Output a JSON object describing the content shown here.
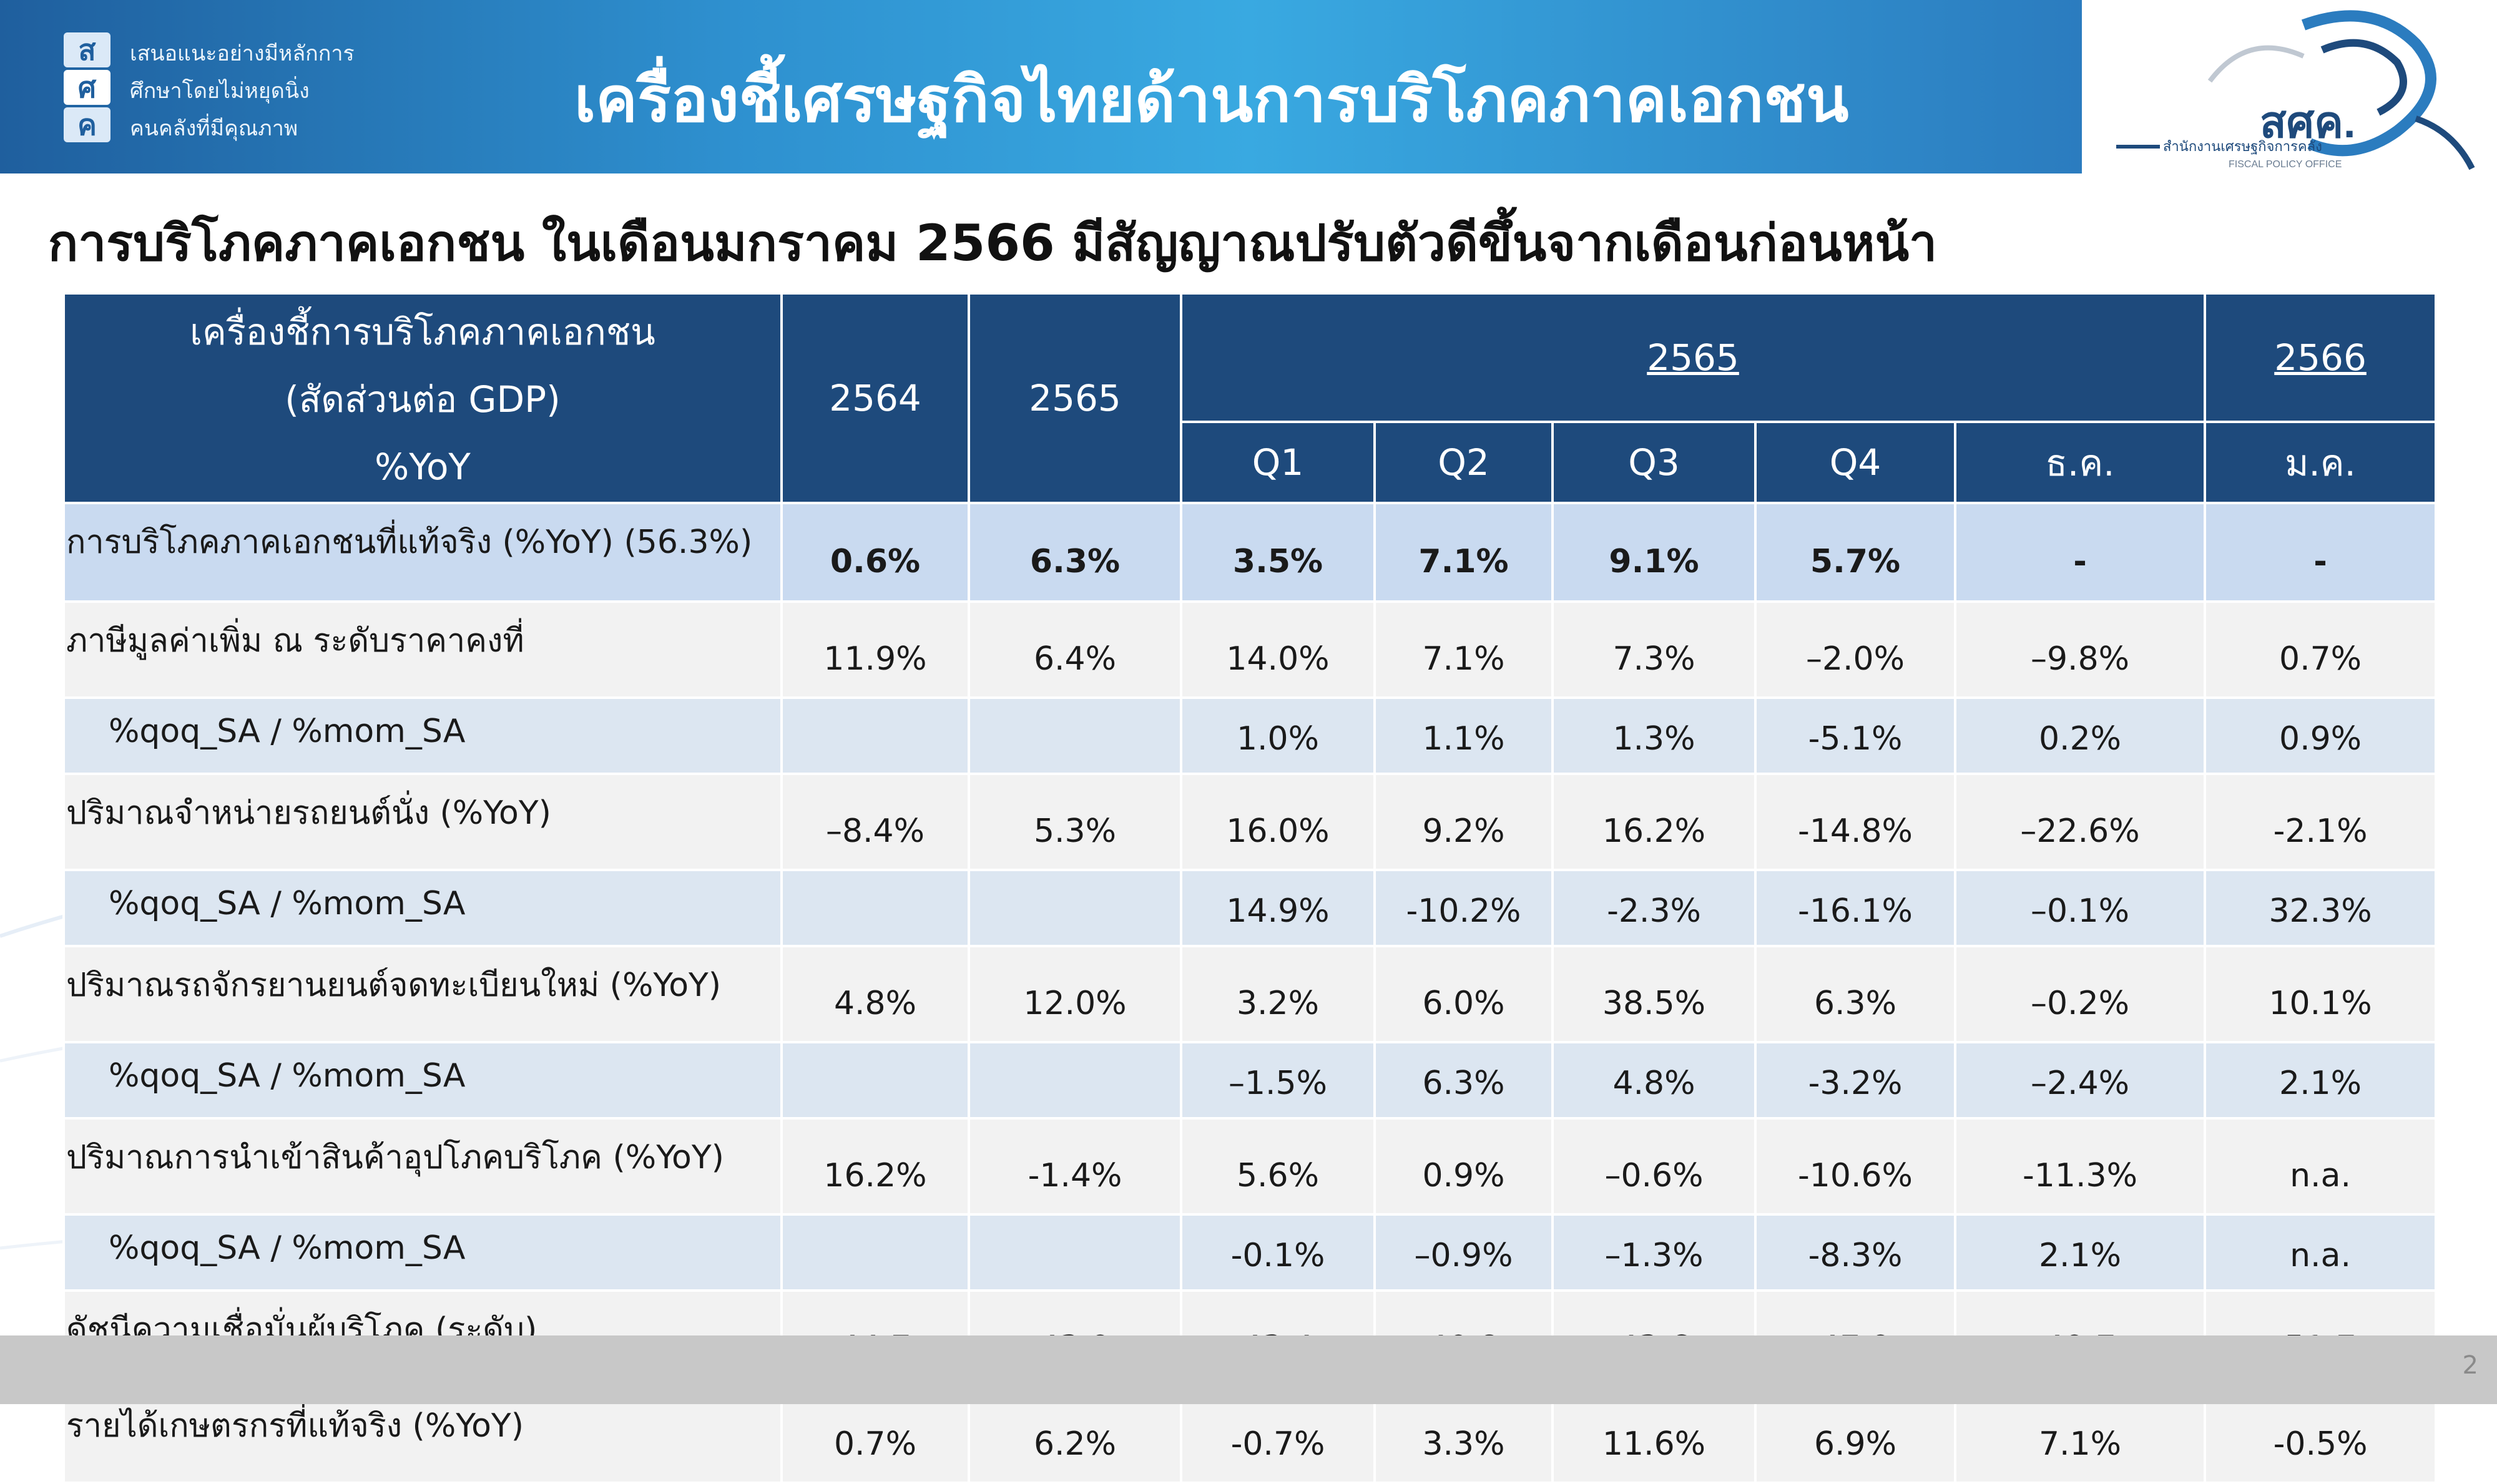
{
  "header": {
    "motto_lines": [
      "เสนอแนะอย่างมีหลักการ",
      "ศึกษาโดยไม่หยุดนิ่ง",
      "คนคลังที่มีคุณภาพ"
    ],
    "skk_letters": [
      "ส",
      "ศ",
      "ค"
    ],
    "title": "เครื่องชี้เศรษฐกิจไทยด้านการบริโภคภาคเอกชน",
    "logo_text": "สศค.",
    "logo_subtext": "สำนักงานเศรษฐกิจการคลัง",
    "logo_subtext_en": "FISCAL POLICY OFFICE",
    "banner_color": "#2e90cf",
    "table_header_color": "#1e4a7c"
  },
  "subtitle": "การบริโภคภาคเอกชน ในเดือนมกราคม 2566 มีสัญญาณปรับตัวดีขึ้นจากเดือนก่อนหน้า",
  "table": {
    "header_label_lines": [
      "เครื่องชี้การบริโภคภาคเอกชน",
      "(สัดส่วนต่อ GDP)",
      "%YoY"
    ],
    "col_2564": "2564",
    "col_2565": "2565",
    "group_2565": "2565",
    "group_2566": "2566",
    "sub_cols": [
      "Q1",
      "Q2",
      "Q3",
      "Q4",
      "ธ.ค.",
      "ม.ค."
    ],
    "rows": [
      {
        "label": "การบริโภคภาคเอกชนที่แท้จริง (%YoY) (56.3%)",
        "values": [
          "0.6%",
          "6.3%",
          "3.5%",
          "7.1%",
          "9.1%",
          "5.7%",
          "-",
          "-"
        ]
      },
      {
        "label": "ภาษีมูลค่าเพิ่ม ณ ระดับราคาคงที่",
        "values": [
          "11.9%",
          "6.4%",
          "14.0%",
          "7.1%",
          "7.3%",
          "–2.0%",
          "–9.8%",
          "0.7%"
        ]
      },
      {
        "label": "%qoq_SA / %mom_SA",
        "values": [
          "",
          "",
          "1.0%",
          "1.1%",
          "1.3%",
          "-5.1%",
          "0.2%",
          "0.9%"
        ]
      },
      {
        "label": "ปริมาณจำหน่ายรถยนต์นั่ง (%YoY)",
        "values": [
          "–8.4%",
          "5.3%",
          "16.0%",
          "9.2%",
          "16.2%",
          "-14.8%",
          "–22.6%",
          "-2.1%"
        ]
      },
      {
        "label": "%qoq_SA / %mom_SA",
        "values": [
          "",
          "",
          "14.9%",
          "-10.2%",
          "-2.3%",
          "-16.1%",
          "–0.1%",
          "32.3%"
        ]
      },
      {
        "label": "ปริมาณรถจักรยานยนต์จดทะเบียนใหม่ (%YoY)",
        "values": [
          "4.8%",
          "12.0%",
          "3.2%",
          "6.0%",
          "38.5%",
          "6.3%",
          "–0.2%",
          "10.1%"
        ]
      },
      {
        "label": "%qoq_SA / %mom_SA",
        "values": [
          "",
          "",
          "–1.5%",
          "6.3%",
          "4.8%",
          "-3.2%",
          "–2.4%",
          "2.1%"
        ]
      },
      {
        "label": "ปริมาณการนำเข้าสินค้าอุปโภคบริโภค (%YoY)",
        "values": [
          "16.2%",
          "-1.4%",
          "5.6%",
          "0.9%",
          "–0.6%",
          "-10.6%",
          "-11.3%",
          "n.a."
        ]
      },
      {
        "label": "%qoq_SA / %mom_SA",
        "values": [
          "",
          "",
          "-0.1%",
          "–0.9%",
          "–1.3%",
          "-8.3%",
          "2.1%",
          "n.a."
        ]
      },
      {
        "label": "ดัชนีความเชื่อมั่นผู้บริโภค (ระดับ)",
        "values": [
          "44.7",
          "43.9",
          "43.4",
          "40.8",
          "43.6",
          "47.9",
          "49.7",
          "51.7"
        ]
      },
      {
        "label": "รายได้เกษตรกรที่แท้จริง (%YoY)",
        "values": [
          "0.7%",
          "6.2%",
          "-0.7%",
          "3.3%",
          "11.6%",
          "6.9%",
          "7.1%",
          "-0.5%"
        ]
      }
    ]
  },
  "page_number": "2"
}
